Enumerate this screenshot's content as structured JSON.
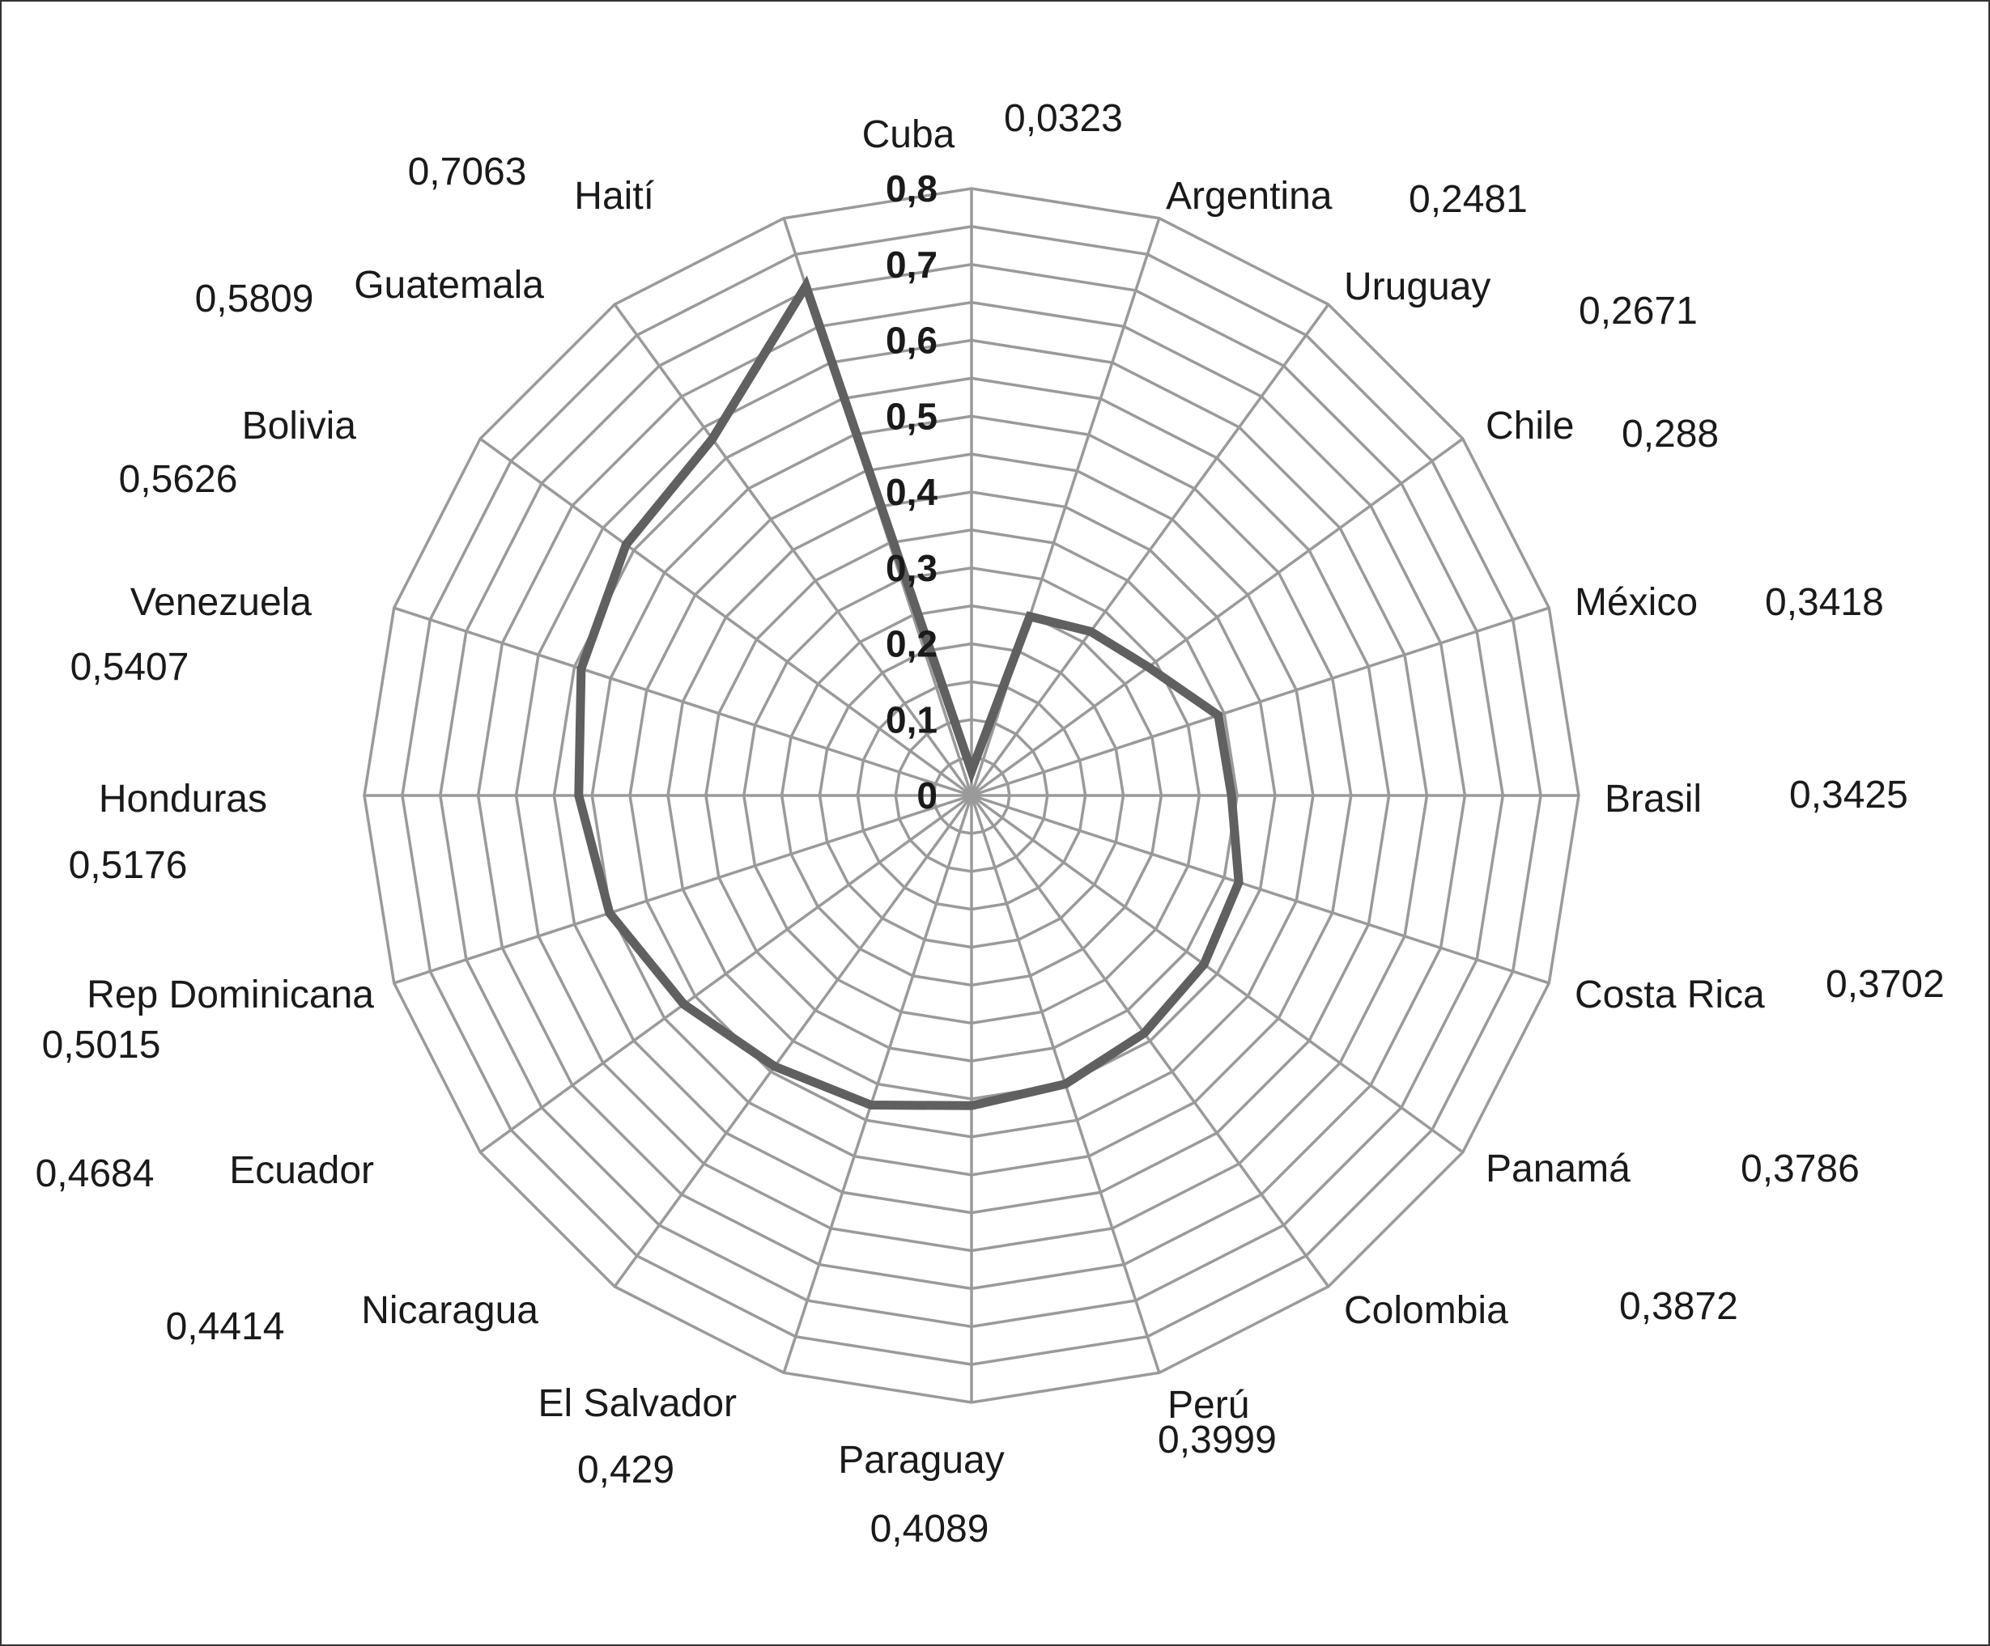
{
  "chart_data": {
    "type": "radar",
    "title": "",
    "categories": [
      "Cuba",
      "Argentina",
      "Uruguay",
      "Chile",
      "México",
      "Brasil",
      "Costa Rica",
      "Panamá",
      "Colombia",
      "Perú",
      "Paraguay",
      "El Salvador",
      "Nicaragua",
      "Ecuador",
      "Rep Dominicana",
      "Honduras",
      "Venezuela",
      "Bolivia",
      "Guatemala",
      "Haití"
    ],
    "values": [
      0.0323,
      0.2481,
      0.2671,
      0.288,
      0.3418,
      0.3425,
      0.3702,
      0.3786,
      0.3872,
      0.3999,
      0.4089,
      0.429,
      0.4414,
      0.4684,
      0.5015,
      0.5176,
      0.5407,
      0.5626,
      0.5809,
      0.7063
    ],
    "value_labels": [
      "0,0323",
      "0,2481",
      "0,2671",
      "0,288",
      "0,3418",
      "0,3425",
      "0,3702",
      "0,3786",
      "0,3872",
      "0,3999",
      "0,4089",
      "0,429",
      "0,4414",
      "0,4684",
      "0,5015",
      "0,5176",
      "0,5407",
      "0,5626",
      "0,5809",
      "0,7063"
    ],
    "radial_ticks": [
      "0",
      "0,1",
      "0,2",
      "0,3",
      "0,4",
      "0,5",
      "0,6",
      "0,7",
      "0,8"
    ],
    "rlim": [
      0,
      0.8
    ],
    "grid": true,
    "legend": "none",
    "colors": {
      "series": "#606060",
      "grid": "#9a9a9a",
      "text": "#1a1a1a",
      "frame": "#333333"
    }
  }
}
